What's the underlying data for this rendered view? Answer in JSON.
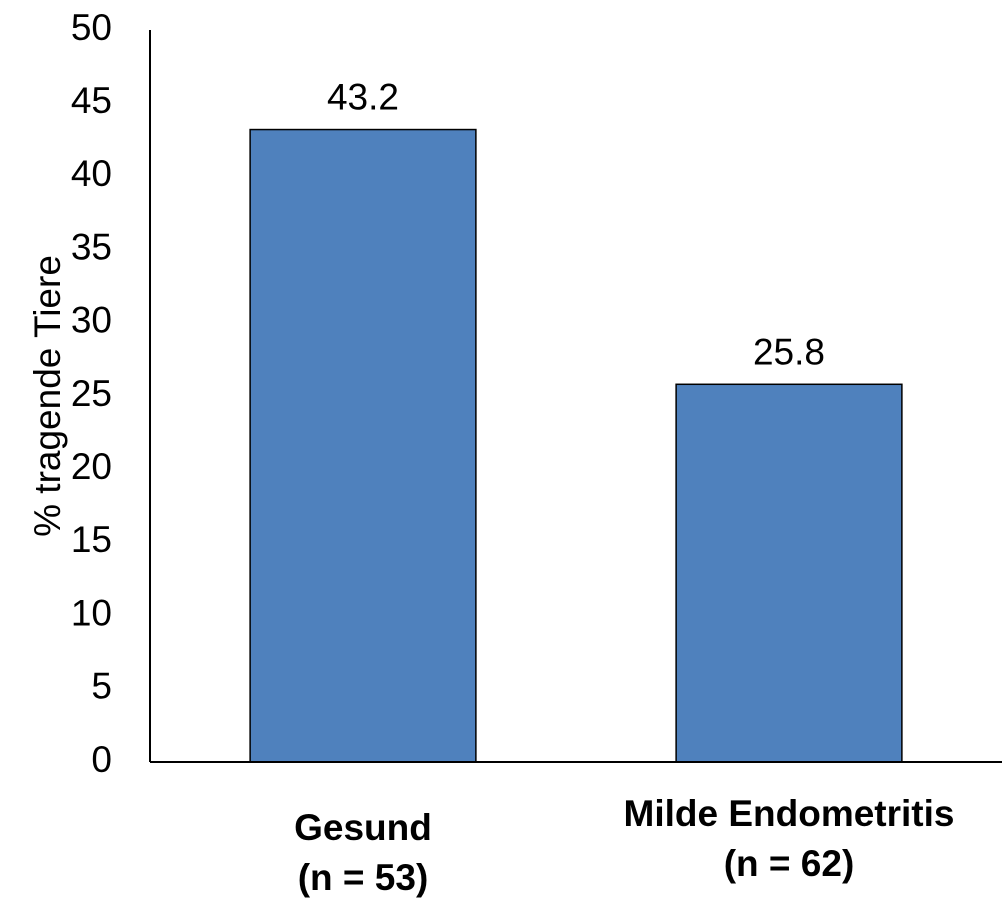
{
  "chart_data": {
    "type": "bar",
    "categories": [
      [
        "Gesund",
        "(n = 53)"
      ],
      [
        "Milde Endometritis",
        "(n = 62)"
      ]
    ],
    "values": [
      43.2,
      25.8
    ],
    "data_labels": [
      "43.2",
      "25.8"
    ],
    "title": "",
    "xlabel": "",
    "ylabel": "% tragende Tiere",
    "ylim": [
      0,
      50
    ],
    "yticks": [
      0,
      5,
      10,
      15,
      20,
      25,
      30,
      35,
      40,
      45,
      50
    ],
    "grid": false,
    "legend": "none",
    "colors": {
      "bar": "#4F81BD",
      "bar_outline": "#000000",
      "axis": "#000000"
    }
  }
}
